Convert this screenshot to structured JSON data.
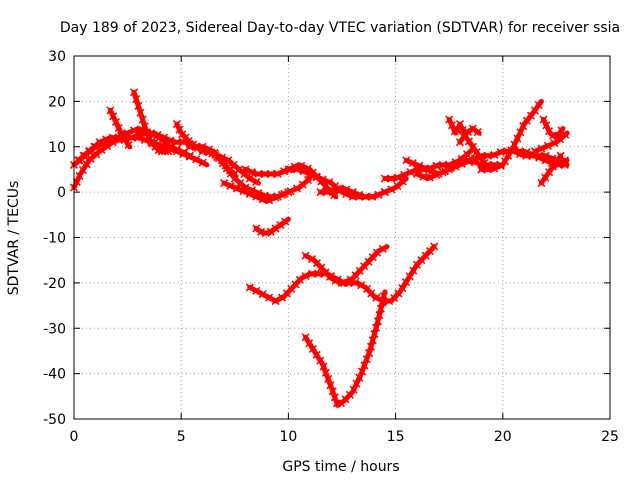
{
  "chart_data": {
    "type": "scatter",
    "title": "Day 189 of 2023, Sidereal Day-to-day VTEC variation (SDTVAR) for receiver ssia",
    "xlabel": "GPS time / hours",
    "ylabel": "SDTVAR / TECUs",
    "xlim": [
      0,
      25
    ],
    "ylim": [
      -50,
      30
    ],
    "xticks": [
      0,
      5,
      10,
      15,
      20,
      25
    ],
    "yticks": [
      -50,
      -40,
      -30,
      -20,
      -10,
      0,
      10,
      20,
      30
    ],
    "grid": true,
    "legend": "none",
    "color": "#ff0000",
    "series": [
      {
        "x": [
          0.0,
          0.3,
          0.7,
          1.2,
          1.8,
          2.4,
          3.0,
          3.6,
          4.2,
          4.8,
          5.3,
          5.8,
          6.2
        ],
        "values": [
          1,
          4,
          7,
          9,
          11,
          12,
          12,
          11,
          10,
          9,
          8,
          7,
          6
        ]
      },
      {
        "x": [
          0.0,
          0.5,
          1.0,
          1.5,
          2.0,
          2.5,
          3.0,
          3.5,
          4.0,
          4.5,
          5.0,
          5.4
        ],
        "values": [
          6,
          8,
          10,
          11,
          12,
          13,
          14,
          13,
          12,
          10,
          9,
          8
        ]
      },
      {
        "x": [
          0.2,
          0.7,
          1.2,
          1.7,
          2.2,
          2.7,
          3.2,
          3.7,
          4.2,
          4.7,
          5.2,
          5.7,
          6.2,
          6.7,
          7.2,
          7.7,
          8.2,
          8.6
        ],
        "values": [
          7,
          9,
          11,
          12,
          12,
          12,
          13,
          13,
          12,
          11,
          11,
          10,
          9,
          8,
          7,
          5,
          3,
          2
        ]
      },
      {
        "x": [
          1.7,
          2.0,
          2.3,
          2.6
        ],
        "values": [
          18,
          15,
          12,
          10
        ]
      },
      {
        "x": [
          2.8,
          3.0,
          3.2,
          3.4,
          3.6,
          3.8,
          4.0,
          4.2,
          4.4
        ],
        "values": [
          22,
          19,
          16,
          13,
          11,
          10,
          9,
          9,
          9
        ]
      },
      {
        "x": [
          4.8,
          5.0,
          5.2,
          5.4,
          5.7,
          6.0,
          6.3,
          6.6,
          6.9,
          7.2,
          7.5
        ],
        "values": [
          15,
          13,
          12,
          11,
          10,
          9,
          9,
          8,
          7,
          5,
          4
        ]
      },
      {
        "x": [
          5.4,
          6.0,
          6.5,
          7.0,
          7.5,
          8.0,
          8.5,
          9.0,
          9.5,
          10.0,
          10.5,
          11.0
        ],
        "values": [
          10,
          10,
          9,
          6,
          3,
          1,
          0,
          -1,
          -1,
          0,
          1,
          3
        ]
      },
      {
        "x": [
          7.0,
          7.5,
          8.0,
          8.5,
          9.0,
          9.5,
          10.0
        ],
        "values": [
          2,
          1,
          0,
          -1,
          -2,
          -1,
          0
        ]
      },
      {
        "x": [
          8.0,
          8.5,
          9.0,
          9.5,
          10.0,
          10.5,
          11.0,
          11.5,
          12.0,
          12.5,
          13.0,
          13.5,
          14.0,
          14.5
        ],
        "values": [
          5,
          4,
          4,
          4,
          5,
          5,
          4,
          3,
          2,
          0,
          -1,
          -1,
          -1,
          0
        ]
      },
      {
        "x": [
          10.0,
          10.5,
          11.0,
          11.4,
          11.8,
          12.2
        ],
        "values": [
          5,
          6,
          5,
          3,
          1,
          -1
        ]
      },
      {
        "x": [
          11.5,
          12.0,
          12.5,
          13.0,
          13.5,
          14.0,
          14.5,
          15.0,
          15.5
        ],
        "values": [
          0,
          0,
          1,
          0,
          -1,
          -1,
          0,
          1,
          3
        ]
      },
      {
        "x": [
          8.5,
          8.8,
          9.1,
          9.4,
          9.7,
          10.0
        ],
        "values": [
          -8,
          -9,
          -9,
          -8,
          -7,
          -6
        ]
      },
      {
        "x": [
          8.2,
          8.6,
          9.0,
          9.4,
          9.8,
          10.2,
          10.6,
          11.0,
          11.4,
          11.8,
          12.2,
          12.6,
          13.0,
          13.4,
          13.8,
          14.2,
          14.6
        ],
        "values": [
          -21,
          -22,
          -23,
          -24,
          -23,
          -21,
          -19,
          -18,
          -18,
          -18,
          -19,
          -20,
          -19,
          -17,
          -15,
          -13,
          -12
        ]
      },
      {
        "x": [
          10.8,
          11.2,
          11.6,
          12.0,
          12.4,
          12.8,
          13.2,
          13.6,
          14.0,
          14.4,
          14.8,
          15.2,
          15.6,
          16.0,
          16.4,
          16.8
        ],
        "values": [
          -14,
          -15,
          -17,
          -19,
          -20,
          -20,
          -20,
          -21,
          -23,
          -24,
          -24,
          -22,
          -19,
          -16,
          -14,
          -12
        ]
      },
      {
        "x": [
          10.8,
          11.2,
          11.6,
          12.0,
          12.3,
          12.6,
          13.0,
          13.4,
          13.8,
          14.2,
          14.5
        ],
        "values": [
          -32,
          -35,
          -38,
          -43,
          -47,
          -46,
          -44,
          -40,
          -35,
          -28,
          -22
        ]
      },
      {
        "x": [
          14.5,
          15.0,
          15.5,
          16.0,
          16.5,
          17.0,
          17.5,
          18.0,
          18.5,
          19.0,
          19.5,
          20.0
        ],
        "values": [
          3,
          3,
          4,
          5,
          5,
          6,
          6,
          7,
          7,
          6,
          6,
          6
        ]
      },
      {
        "x": [
          15.5,
          16.0,
          16.5,
          17.0,
          17.5,
          18.0,
          18.5
        ],
        "values": [
          7,
          6,
          5,
          4,
          5,
          7,
          9
        ]
      },
      {
        "x": [
          16.0,
          16.5,
          17.0,
          17.5,
          18.0,
          18.5,
          19.0,
          19.5,
          20.0,
          20.5,
          21.0,
          21.5,
          22.0,
          22.5,
          23.0
        ],
        "values": [
          4,
          3,
          4,
          5,
          6,
          7,
          8,
          8,
          9,
          9,
          9,
          8,
          8,
          7,
          7
        ]
      },
      {
        "x": [
          17.5,
          17.8,
          18.0,
          18.3,
          18.6,
          18.9,
          19.2,
          19.5
        ],
        "values": [
          16,
          13,
          15,
          12,
          10,
          8,
          6,
          5
        ]
      },
      {
        "x": [
          18.0,
          18.3,
          18.6,
          18.9
        ],
        "values": [
          11,
          13,
          14,
          13
        ]
      },
      {
        "x": [
          19.0,
          19.5,
          20.0,
          20.5,
          21.0,
          21.5,
          21.8
        ],
        "values": [
          5,
          5,
          6,
          10,
          15,
          18,
          20
        ]
      },
      {
        "x": [
          20.5,
          21.0,
          21.5,
          22.0,
          22.5,
          23.0
        ],
        "values": [
          9,
          8,
          8,
          7,
          6,
          6
        ]
      },
      {
        "x": [
          21.8,
          22.1,
          22.4,
          22.7
        ],
        "values": [
          2,
          4,
          6,
          8
        ]
      },
      {
        "x": [
          21.9,
          22.2,
          22.5,
          22.8
        ],
        "values": [
          16,
          13,
          12,
          14
        ]
      },
      {
        "x": [
          21.5,
          22.0,
          22.5,
          23.0
        ],
        "values": [
          9,
          10,
          11,
          13
        ]
      }
    ]
  }
}
